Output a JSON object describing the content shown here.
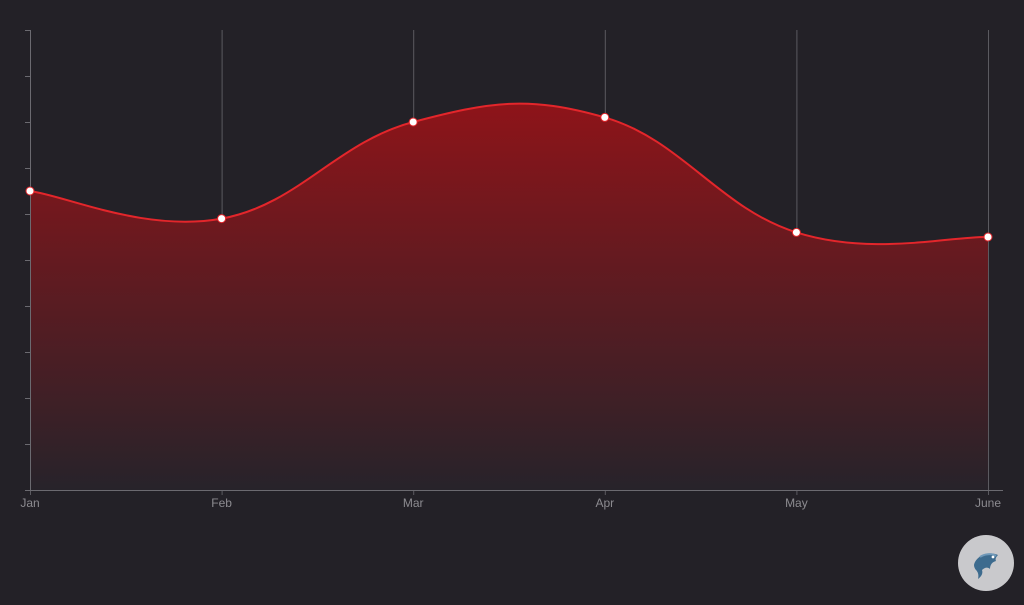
{
  "chart_data": {
    "type": "area",
    "categories": [
      "Jan",
      "Feb",
      "Mar",
      "Apr",
      "May",
      "June"
    ],
    "values": [
      65,
      59,
      80,
      81,
      56,
      55
    ],
    "ylim": [
      0,
      100
    ],
    "y_ticks": 10,
    "grid": "vertical",
    "curve": "smooth",
    "colors": {
      "line": "#e3262b",
      "fill_top": "#8e1419",
      "fill_bottom": "#27232a",
      "grid": "#5b5a60",
      "axis": "#6b6a70",
      "tick_label": "#8c8b90",
      "point": "#ffffff"
    }
  },
  "logo": {
    "icon": "fish-icon",
    "background": "#c9c9cc",
    "color": "#3d6b8e"
  }
}
